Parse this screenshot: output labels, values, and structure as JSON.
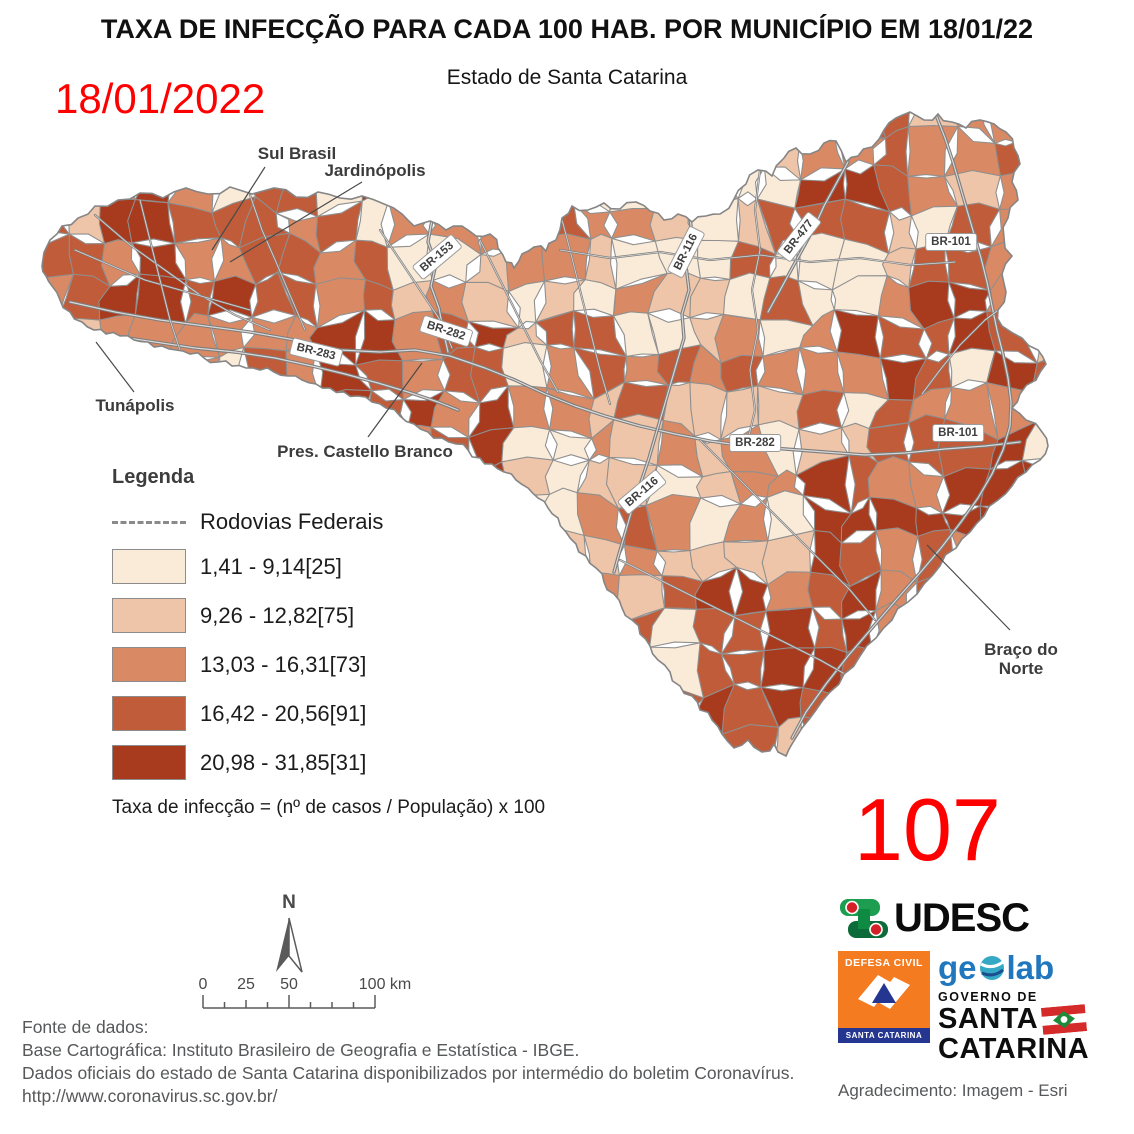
{
  "header": {
    "title": "TAXA DE INFECÇÃO PARA CADA 100 HAB. POR MUNICÍPIO EM 18/01/22",
    "subtitle": "Estado de Santa Catarina",
    "date_annotation": "18/01/2022",
    "count_annotation": "107",
    "annotation_color": "#fe0000"
  },
  "map": {
    "region_name": "Santa Catarina",
    "place_labels": [
      {
        "text": "Sul Brasil"
      },
      {
        "text": "Jardinópolis"
      },
      {
        "text": "Tunápolis"
      },
      {
        "text": "Pres. Castello Branco"
      },
      {
        "line1": "Braço do",
        "line2": "Norte"
      }
    ],
    "road_shields": [
      {
        "text": "BR-153"
      },
      {
        "text": "BR-283"
      },
      {
        "text": "BR-282"
      },
      {
        "text": "BR-116"
      },
      {
        "text": "BR-477"
      },
      {
        "text": "BR-101"
      },
      {
        "text": "BR-282"
      },
      {
        "text": "BR-116"
      },
      {
        "text": "BR-101"
      }
    ],
    "border_color": "#8f8f8f",
    "road_color": "#7d7d7d"
  },
  "legend": {
    "heading": "Legenda",
    "roads_label": "Rodovias Federais",
    "classes": [
      {
        "label": "1,41 - 9,14[25]",
        "color": "#faebd9"
      },
      {
        "label": "9,26 - 12,82[75]",
        "color": "#eec5a8"
      },
      {
        "label": "13,03 - 16,31[73]",
        "color": "#d98a64"
      },
      {
        "label": "16,42 - 20,56[91]",
        "color": "#c05c39"
      },
      {
        "label": "20,98 - 31,85[31]",
        "color": "#a83a1e"
      }
    ],
    "formula": "Taxa de infecção = (nº de casos / População) x 100"
  },
  "scale_bar": {
    "north_label": "N",
    "labels": [
      "0",
      "25",
      "50",
      "100 km"
    ]
  },
  "credits": {
    "lines": [
      "Fonte de dados:",
      "Base Cartográfica: Instituto Brasileiro de Geografia e Estatística - IBGE.",
      "Dados oficiais do estado de Santa Catarina disponibilizados por intermédio do boletim Coronavírus.",
      "http://www.coronavirus.sc.gov.br/"
    ],
    "acknowledgement": "Agradecimento: Imagem - Esri"
  },
  "logos": {
    "udesc": "UDESC",
    "defesa_civil": {
      "title": "DEFESA CIVIL",
      "footer": "SANTA CATARINA"
    },
    "geolab": {
      "left": "ge",
      "right": "lab"
    },
    "governo": {
      "line1": "GOVERNO DE",
      "line2": "SANTA",
      "line3": "CATARINA"
    }
  }
}
